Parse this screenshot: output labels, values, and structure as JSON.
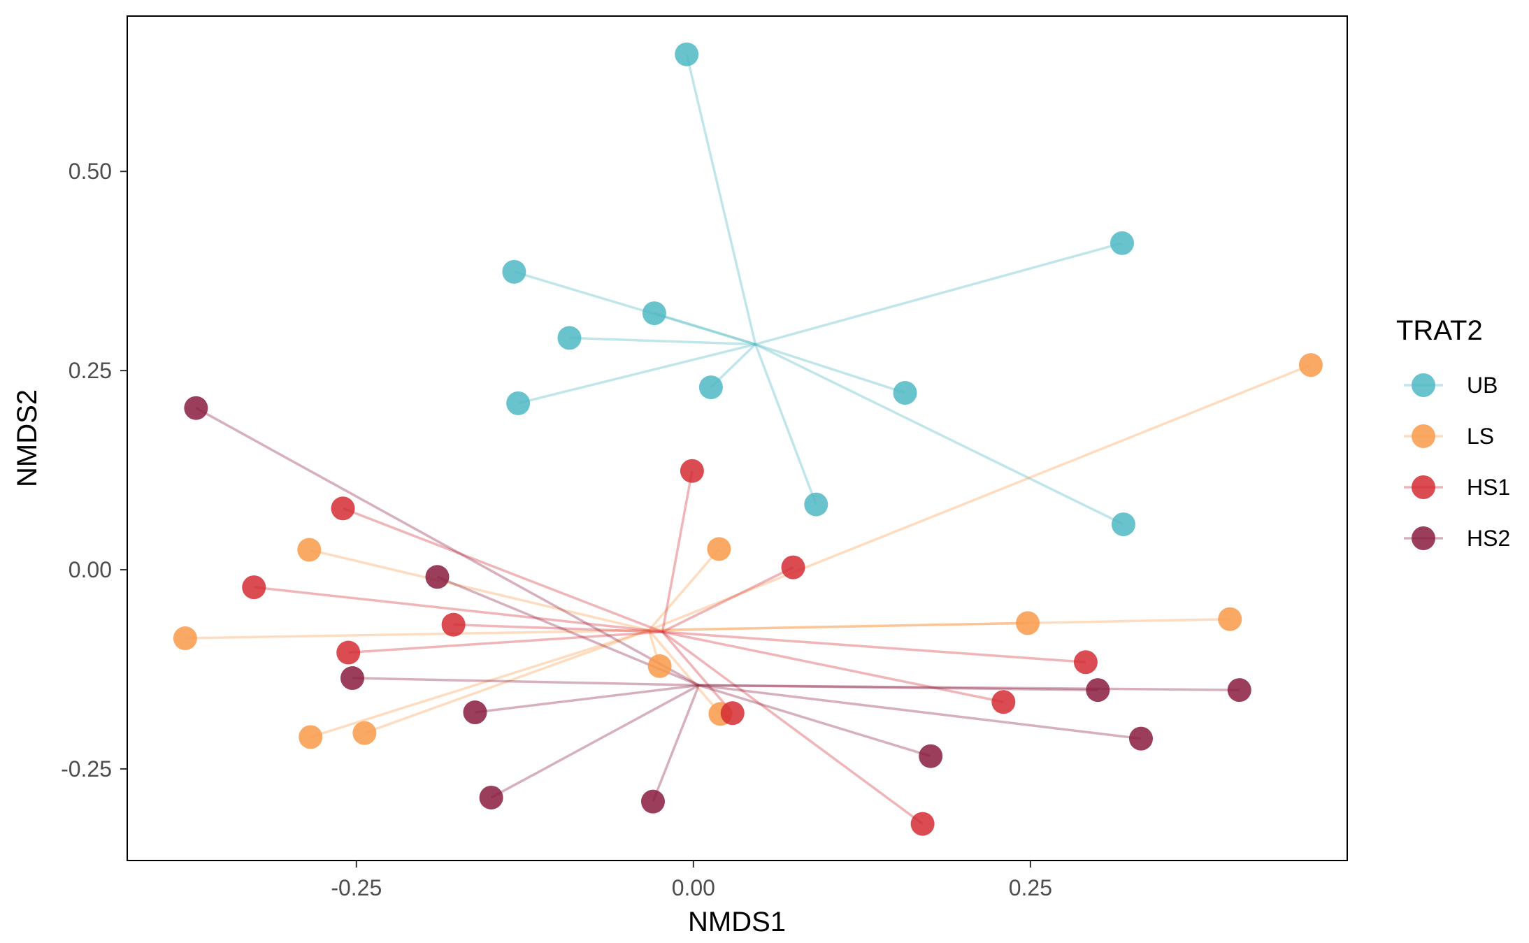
{
  "chart_data": {
    "type": "scatter",
    "xlabel": "NMDS1",
    "ylabel": "NMDS2",
    "xlim": [
      -0.42,
      0.485
    ],
    "ylim": [
      -0.365,
      0.695
    ],
    "x_ticks": [
      -0.25,
      0.0,
      0.25
    ],
    "x_tick_labels": [
      "-0.25",
      "0.00",
      "0.25"
    ],
    "y_ticks": [
      -0.25,
      0.0,
      0.25,
      0.5
    ],
    "y_tick_labels": [
      "-0.25",
      "0.00",
      "0.25",
      "0.50"
    ],
    "grid": false,
    "legend": {
      "title": "TRAT2",
      "placement": "right"
    },
    "series": [
      {
        "name": "UB",
        "color": "#4db8c4",
        "centroid": [
          0.046,
          0.283
        ],
        "points": [
          [
            -0.005,
            0.647
          ],
          [
            -0.133,
            0.374
          ],
          [
            -0.029,
            0.322
          ],
          [
            -0.092,
            0.291
          ],
          [
            -0.13,
            0.209
          ],
          [
            0.013,
            0.229
          ],
          [
            0.157,
            0.222
          ],
          [
            0.091,
            0.082
          ],
          [
            0.318,
            0.41
          ],
          [
            0.319,
            0.057
          ]
        ]
      },
      {
        "name": "LS",
        "color": "#f99a4a",
        "centroid": [
          -0.033,
          -0.076
        ],
        "points": [
          [
            -0.285,
            0.025
          ],
          [
            0.019,
            0.026
          ],
          [
            -0.377,
            -0.086
          ],
          [
            0.248,
            -0.067
          ],
          [
            0.398,
            -0.062
          ],
          [
            -0.025,
            -0.121
          ],
          [
            0.02,
            -0.181
          ],
          [
            -0.284,
            -0.21
          ],
          [
            -0.244,
            -0.205
          ],
          [
            0.458,
            0.257
          ]
        ]
      },
      {
        "name": "HS1",
        "color": "#d42c34",
        "centroid": [
          -0.023,
          -0.078
        ],
        "points": [
          [
            -0.001,
            0.124
          ],
          [
            -0.26,
            0.077
          ],
          [
            0.074,
            0.003
          ],
          [
            -0.326,
            -0.022
          ],
          [
            -0.178,
            -0.069
          ],
          [
            -0.256,
            -0.104
          ],
          [
            0.291,
            -0.116
          ],
          [
            0.23,
            -0.166
          ],
          [
            0.029,
            -0.18
          ],
          [
            0.17,
            -0.319
          ]
        ]
      },
      {
        "name": "HS2",
        "color": "#8a1c3e",
        "centroid": [
          0.004,
          -0.145
        ],
        "points": [
          [
            -0.369,
            0.203
          ],
          [
            -0.19,
            -0.009
          ],
          [
            -0.253,
            -0.136
          ],
          [
            -0.162,
            -0.179
          ],
          [
            -0.15,
            -0.286
          ],
          [
            -0.03,
            -0.291
          ],
          [
            0.176,
            -0.234
          ],
          [
            0.3,
            -0.151
          ],
          [
            0.405,
            -0.151
          ],
          [
            0.332,
            -0.212
          ]
        ]
      }
    ]
  }
}
